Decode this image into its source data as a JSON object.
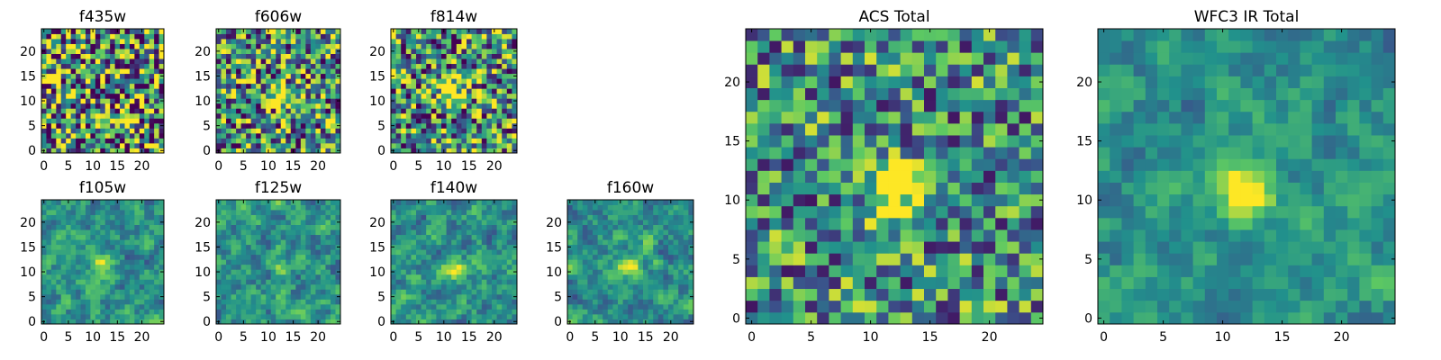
{
  "chart_data": [
    {
      "type": "heatmap",
      "title": "f435w",
      "grid_size": 25,
      "xlim": [
        0,
        24
      ],
      "ylim": [
        0,
        24
      ],
      "xticks": [
        "0",
        "5",
        "10",
        "15",
        "20"
      ],
      "yticks": [
        "0",
        "5",
        "10",
        "15",
        "20"
      ],
      "source_peak": [
        11,
        11
      ],
      "peak_strength": 0.12,
      "noise_level": 0.85,
      "smoothing": 0
    },
    {
      "type": "heatmap",
      "title": "f606w",
      "grid_size": 25,
      "xlim": [
        0,
        24
      ],
      "ylim": [
        0,
        24
      ],
      "xticks": [
        "0",
        "5",
        "10",
        "15",
        "20"
      ],
      "yticks": [
        "0",
        "5",
        "10",
        "15",
        "20"
      ],
      "source_peak": [
        12,
        11
      ],
      "peak_strength": 0.55,
      "noise_level": 0.7,
      "smoothing": 0
    },
    {
      "type": "heatmap",
      "title": "f814w",
      "grid_size": 25,
      "xlim": [
        0,
        24
      ],
      "ylim": [
        0,
        24
      ],
      "xticks": [
        "0",
        "5",
        "10",
        "15",
        "20"
      ],
      "yticks": [
        "0",
        "5",
        "10",
        "15",
        "20"
      ],
      "source_peak": [
        12,
        11
      ],
      "peak_strength": 0.6,
      "noise_level": 0.7,
      "smoothing": 0
    },
    {
      "type": "heatmap",
      "title": "f105w",
      "grid_size": 25,
      "xlim": [
        0,
        24
      ],
      "ylim": [
        0,
        24
      ],
      "xticks": [
        "0",
        "5",
        "10",
        "15",
        "20"
      ],
      "yticks": [
        "0",
        "5",
        "10",
        "15",
        "20"
      ],
      "source_peak": [
        12,
        11
      ],
      "peak_strength": 0.45,
      "noise_level": 0.55,
      "smoothing": 1
    },
    {
      "type": "heatmap",
      "title": "f125w",
      "grid_size": 25,
      "xlim": [
        0,
        24
      ],
      "ylim": [
        0,
        24
      ],
      "xticks": [
        "0",
        "5",
        "10",
        "15",
        "20"
      ],
      "yticks": [
        "0",
        "5",
        "10",
        "15",
        "20"
      ],
      "source_peak": [
        12,
        11
      ],
      "peak_strength": 0.35,
      "noise_level": 0.6,
      "smoothing": 1
    },
    {
      "type": "heatmap",
      "title": "f140w",
      "grid_size": 25,
      "xlim": [
        0,
        24
      ],
      "ylim": [
        0,
        24
      ],
      "xticks": [
        "0",
        "5",
        "10",
        "15",
        "20"
      ],
      "yticks": [
        "0",
        "5",
        "10",
        "15",
        "20"
      ],
      "source_peak": [
        12,
        11
      ],
      "peak_strength": 0.4,
      "noise_level": 0.6,
      "smoothing": 1
    },
    {
      "type": "heatmap",
      "title": "f160w",
      "grid_size": 25,
      "xlim": [
        0,
        24
      ],
      "ylim": [
        0,
        24
      ],
      "xticks": [
        "0",
        "5",
        "10",
        "15",
        "20"
      ],
      "yticks": [
        "0",
        "5",
        "10",
        "15",
        "20"
      ],
      "source_peak": [
        12,
        11
      ],
      "peak_strength": 0.5,
      "noise_level": 0.55,
      "smoothing": 1
    },
    {
      "type": "heatmap",
      "title": "ACS Total",
      "grid_size": 25,
      "xlim": [
        0,
        24
      ],
      "ylim": [
        0,
        24
      ],
      "xticks": [
        "0",
        "5",
        "10",
        "15",
        "20"
      ],
      "yticks": [
        "0",
        "5",
        "10",
        "15",
        "20"
      ],
      "source_peak": [
        12,
        11
      ],
      "peak_strength": 0.7,
      "noise_level": 0.55,
      "smoothing": 0
    },
    {
      "type": "heatmap",
      "title": "WFC3 IR Total",
      "grid_size": 25,
      "xlim": [
        0,
        24
      ],
      "ylim": [
        0,
        24
      ],
      "xticks": [
        "0",
        "5",
        "10",
        "15",
        "20"
      ],
      "yticks": [
        "0",
        "5",
        "10",
        "15",
        "20"
      ],
      "source_peak": [
        12,
        11
      ],
      "peak_strength": 0.7,
      "noise_level": 0.45,
      "smoothing": 1
    }
  ],
  "colormap": [
    "#440154",
    "#3b528b",
    "#21918c",
    "#5ec962",
    "#fde725"
  ]
}
